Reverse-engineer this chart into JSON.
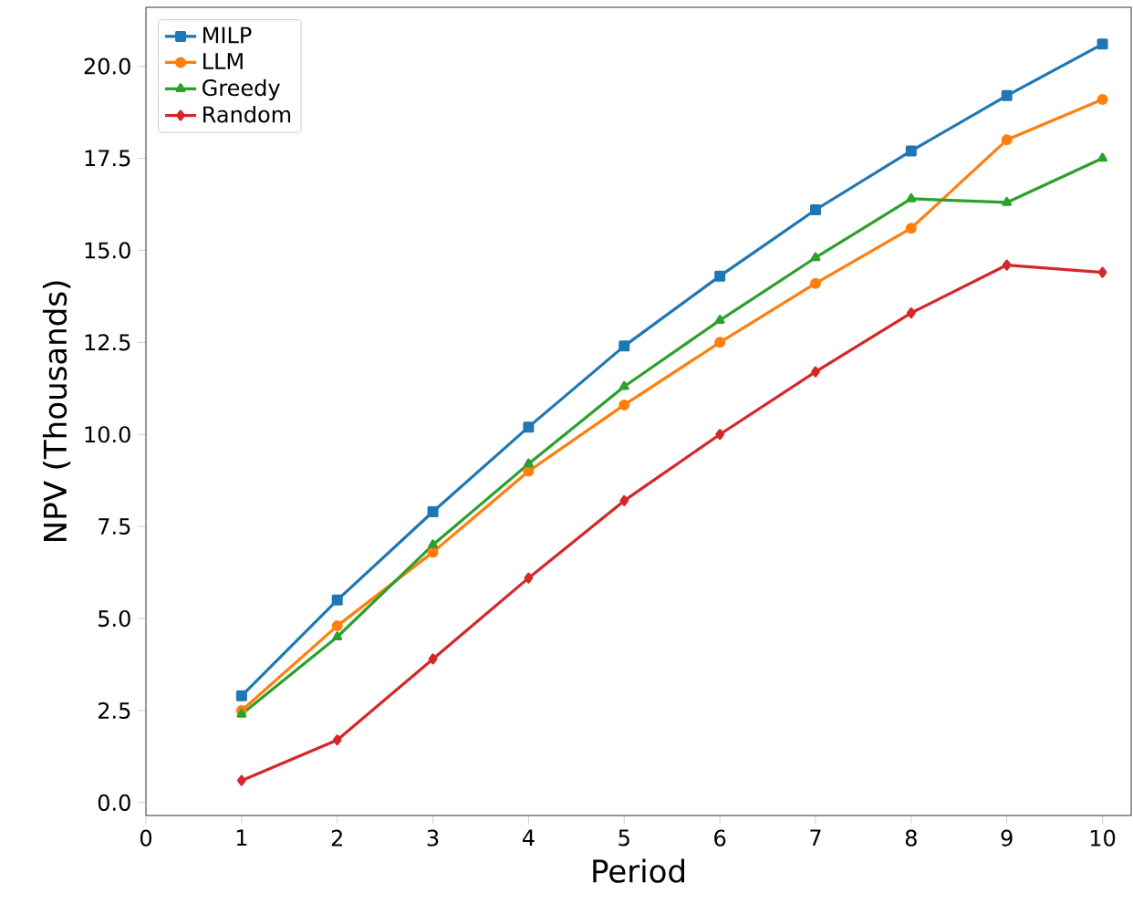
{
  "chart_data": {
    "type": "line",
    "xlabel": "Period",
    "ylabel": "NPV (Thousands)",
    "x": [
      1,
      2,
      3,
      4,
      5,
      6,
      7,
      8,
      9,
      10
    ],
    "series": [
      {
        "name": "MILP",
        "color": "#1f77b4",
        "marker": "square",
        "values": [
          2.9,
          5.5,
          7.9,
          10.2,
          12.4,
          14.3,
          16.1,
          17.7,
          19.2,
          20.6
        ]
      },
      {
        "name": "LLM",
        "color": "#ff7f0e",
        "marker": "circle",
        "values": [
          2.5,
          4.8,
          6.8,
          9.0,
          10.8,
          12.5,
          14.1,
          15.6,
          18.0,
          19.1
        ]
      },
      {
        "name": "Greedy",
        "color": "#2ca02c",
        "marker": "triangle",
        "values": [
          2.4,
          4.5,
          7.0,
          9.2,
          11.3,
          13.1,
          14.8,
          16.4,
          16.3,
          17.5
        ]
      },
      {
        "name": "Random",
        "color": "#d62728",
        "marker": "diamond",
        "values": [
          0.6,
          1.7,
          3.9,
          6.1,
          8.2,
          10.0,
          11.7,
          13.3,
          14.6,
          14.4
        ]
      }
    ],
    "xlim": [
      0,
      10.3
    ],
    "ylim": [
      -0.35,
      21.6
    ],
    "xticks": [
      0,
      1,
      2,
      3,
      4,
      5,
      6,
      7,
      8,
      9,
      10
    ],
    "yticks": [
      {
        "value": 0,
        "label": "0.0"
      },
      {
        "value": 2.5,
        "label": "2.5"
      },
      {
        "value": 5,
        "label": "5.0"
      },
      {
        "value": 7.5,
        "label": "7.5"
      },
      {
        "value": 10,
        "label": "10.0"
      },
      {
        "value": 12.5,
        "label": "12.5"
      },
      {
        "value": 15,
        "label": "15.0"
      },
      {
        "value": 17.5,
        "label": "17.5"
      },
      {
        "value": 20,
        "label": "20.0"
      }
    ],
    "grid": false,
    "legend": "top left",
    "line_style": "solid"
  }
}
